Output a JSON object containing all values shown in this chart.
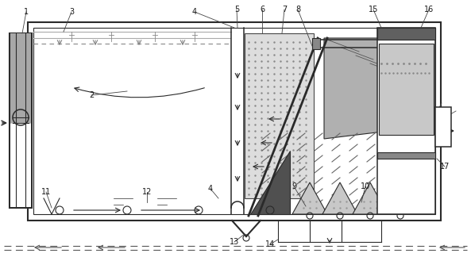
{
  "fig_width": 5.93,
  "fig_height": 3.24,
  "dpi": 100,
  "bg_color": "#ffffff",
  "lc": "#2a2a2a",
  "gray1": "#b0b0b0",
  "gray2": "#c8c8c8",
  "gray3": "#d8d8d8",
  "gray_dark": "#707070",
  "gray_med": "#909090"
}
